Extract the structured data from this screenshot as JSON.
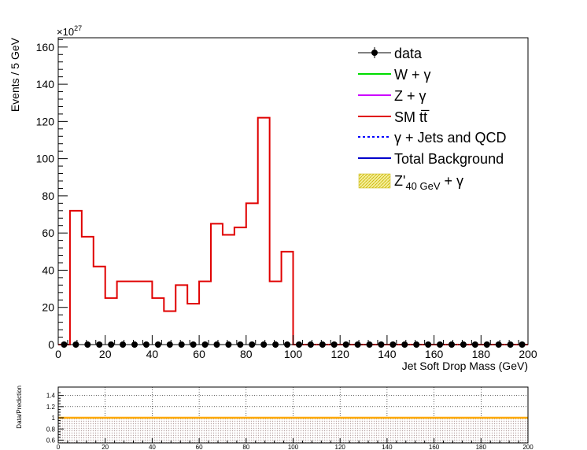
{
  "chart_data": [
    {
      "type": "histogram",
      "ylabel": "Events / 5 GeV",
      "xlabel": "Jet Soft Drop Mass (GeV)",
      "y_multiplier": "×10",
      "y_multiplier_exp": "27",
      "xlim": [
        0,
        200
      ],
      "ylim": [
        0,
        165
      ],
      "x_ticks": [
        "0",
        "20",
        "40",
        "60",
        "80",
        "100",
        "120",
        "140",
        "160",
        "180",
        "200"
      ],
      "y_ticks": [
        "0",
        "20",
        "40",
        "60",
        "80",
        "100",
        "120",
        "140",
        "160"
      ],
      "bin_edges_start": 0,
      "bin_width": 5,
      "series": [
        {
          "name": "SM t̅t̅",
          "color": "#e00000",
          "values": [
            0,
            72,
            58,
            42,
            25,
            34,
            34,
            34,
            25,
            18,
            32,
            22,
            34,
            65,
            59,
            63,
            76,
            122,
            34,
            50,
            0,
            0,
            0,
            0,
            0,
            0,
            0,
            0,
            0,
            0,
            0,
            0,
            0,
            0,
            0,
            0,
            0,
            0,
            0,
            0
          ]
        },
        {
          "name": "data",
          "color": "#000000",
          "marker": "circle",
          "values": [
            0,
            0,
            0,
            0,
            0,
            0,
            0,
            0,
            0,
            0,
            0,
            0,
            0,
            0,
            0,
            0,
            0,
            0,
            0,
            0,
            0,
            0,
            0,
            0,
            0,
            0,
            0,
            0,
            0,
            0,
            0,
            0,
            0,
            0,
            0,
            0,
            0,
            0,
            0,
            0
          ]
        }
      ],
      "legend": {
        "placement": "top-right",
        "entries": [
          {
            "label": "data",
            "style": "marker",
            "color": "#000000"
          },
          {
            "label": "W + γ",
            "style": "line",
            "color": "#00dd00"
          },
          {
            "label": "Z + γ",
            "style": "line",
            "color": "#cc00ff"
          },
          {
            "label": "SM tt̅",
            "style": "line",
            "color": "#e00000"
          },
          {
            "label": "γ + Jets and QCD",
            "style": "dashed",
            "color": "#0000ff"
          },
          {
            "label": "Total Background",
            "style": "line",
            "color": "#0000cc"
          },
          {
            "label": "Z'",
            "sub": "40 GeV",
            "suffix": " + γ",
            "style": "fill",
            "color": "#e8e070"
          }
        ]
      }
    },
    {
      "type": "ratio",
      "ylabel": "Data/Prediction",
      "xlim": [
        0,
        200
      ],
      "ylim": [
        0.55,
        1.55
      ],
      "x_ticks": [
        "0",
        "20",
        "40",
        "60",
        "80",
        "100",
        "120",
        "140",
        "160",
        "180",
        "200"
      ],
      "y_ticks": [
        "0.6",
        "0.8",
        "1",
        "1.2",
        "1.4"
      ],
      "grid": true,
      "reference_line": 1,
      "reference_color": "#ffaa00",
      "uncertainty_band": [
        0.55,
        1.0
      ]
    }
  ]
}
